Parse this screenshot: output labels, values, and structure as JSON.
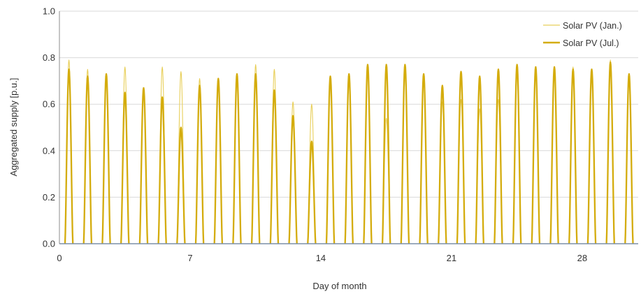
{
  "chart_data": {
    "type": "line",
    "title": "",
    "xlabel": "Day of month",
    "ylabel": "Aggregated supply [p.u.]",
    "xlim": [
      0,
      31
    ],
    "ylim": [
      0,
      1.0
    ],
    "xticks": [
      0,
      7,
      14,
      21,
      28
    ],
    "xtick_labels": [
      "0",
      "7",
      "14",
      "21",
      "28"
    ],
    "yticks": [
      0,
      0.2,
      0.4,
      0.6,
      0.8,
      1.0
    ],
    "ytick_labels": [
      "0.0",
      "0.2",
      "0.4",
      "0.6",
      "0.8",
      "1.0"
    ],
    "grid": "horizontal",
    "legend_position": "top-right",
    "series": [
      {
        "name": "Solar PV (Jan.)",
        "color": "#e8cf5a",
        "line": "thin",
        "daily_peaks": [
          0.79,
          0.75,
          0.73,
          0.76,
          0.67,
          0.76,
          0.74,
          0.71,
          0.71,
          0.73,
          0.77,
          0.75,
          0.61,
          0.6,
          0.72,
          0.73,
          0.77,
          0.54,
          0.77,
          0.72,
          0.61,
          0.62,
          0.58,
          0.62,
          0.76,
          0.76,
          0.76,
          0.76,
          0.75,
          0.79,
          0.73
        ]
      },
      {
        "name": "Solar PV (Jul.)",
        "color": "#d4ac0d",
        "line": "thick",
        "daily_peaks": [
          0.75,
          0.72,
          0.73,
          0.65,
          0.67,
          0.63,
          0.5,
          0.68,
          0.71,
          0.73,
          0.73,
          0.66,
          0.55,
          0.44,
          0.72,
          0.73,
          0.77,
          0.77,
          0.77,
          0.73,
          0.68,
          0.74,
          0.72,
          0.75,
          0.77,
          0.76,
          0.76,
          0.75,
          0.75,
          0.78,
          0.73
        ]
      }
    ]
  }
}
